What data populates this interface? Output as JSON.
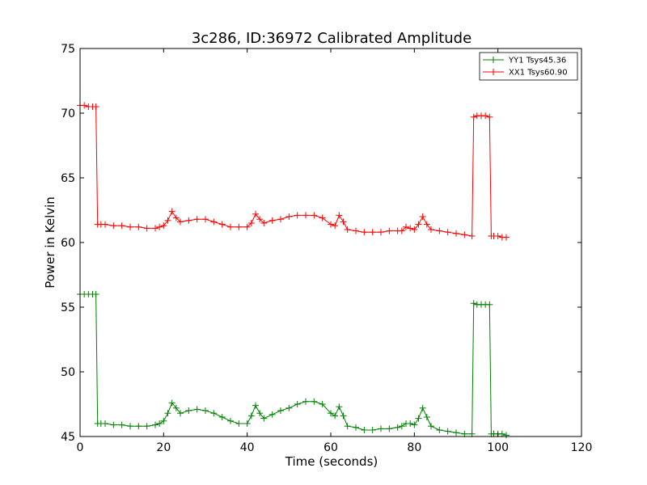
{
  "chart_data": {
    "type": "line",
    "title": "3c286, ID:36972 Calibrated Amplitude",
    "xlabel": "Time (seconds)",
    "ylabel": "Power in Kelvin",
    "xlim": [
      0,
      120
    ],
    "ylim": [
      45,
      75
    ],
    "xticks": [
      0,
      20,
      40,
      60,
      80,
      100,
      120
    ],
    "yticks": [
      45,
      50,
      55,
      60,
      65,
      70,
      75
    ],
    "grid": false,
    "legend_position": "top-right",
    "marker": "+",
    "series": [
      {
        "name": "YY1 Tsys45.36",
        "color": "#008000",
        "x": [
          0,
          1,
          2,
          3,
          3.8,
          4.2,
          5,
          6,
          8,
          10,
          12,
          14,
          16,
          18,
          19,
          20,
          21,
          22,
          23,
          24,
          26,
          28,
          30,
          32,
          34,
          36,
          38,
          40,
          41,
          42,
          43,
          44,
          46,
          48,
          50,
          52,
          54,
          56,
          58,
          60,
          61,
          62,
          63,
          64,
          66,
          68,
          70,
          72,
          74,
          76,
          77,
          78,
          79,
          80,
          81,
          82,
          83,
          84,
          86,
          88,
          90,
          92,
          93.8,
          94.2,
          95,
          96,
          97,
          98,
          98.4,
          99,
          100,
          101,
          102
        ],
        "y": [
          56,
          56,
          56,
          56,
          56,
          46,
          46,
          46,
          45.9,
          45.9,
          45.8,
          45.8,
          45.8,
          45.9,
          46,
          46.2,
          46.8,
          47.6,
          47.2,
          46.8,
          47,
          47.1,
          47,
          46.8,
          46.5,
          46.2,
          46,
          46,
          46.6,
          47.4,
          46.8,
          46.4,
          46.7,
          47,
          47.2,
          47.5,
          47.7,
          47.7,
          47.5,
          46.8,
          46.6,
          47.3,
          46.6,
          45.8,
          45.7,
          45.5,
          45.5,
          45.6,
          45.6,
          45.7,
          45.8,
          46,
          46,
          45.9,
          46.4,
          47.2,
          46.5,
          45.8,
          45.5,
          45.4,
          45.3,
          45.2,
          45.2,
          55.3,
          55.2,
          55.2,
          55.2,
          55.2,
          45.2,
          45.2,
          45.2,
          45.2,
          45.1
        ]
      },
      {
        "name": "XX1 Tsys60.90",
        "color": "#ff0000",
        "x": [
          0,
          1,
          2,
          3,
          3.8,
          4.2,
          5,
          6,
          8,
          10,
          12,
          14,
          16,
          18,
          19,
          20,
          21,
          22,
          23,
          24,
          26,
          28,
          30,
          32,
          34,
          36,
          38,
          40,
          41,
          42,
          43,
          44,
          46,
          48,
          50,
          52,
          54,
          56,
          58,
          60,
          61,
          62,
          63,
          64,
          66,
          68,
          70,
          72,
          74,
          76,
          77,
          78,
          79,
          80,
          81,
          82,
          83,
          84,
          86,
          88,
          90,
          92,
          93.8,
          94.2,
          95,
          96,
          97,
          98,
          98.4,
          99,
          100,
          101,
          102
        ],
        "y": [
          70.6,
          70.6,
          70.5,
          70.5,
          70.5,
          61.4,
          61.4,
          61.4,
          61.3,
          61.3,
          61.2,
          61.2,
          61.1,
          61.1,
          61.2,
          61.3,
          61.7,
          62.4,
          61.9,
          61.6,
          61.7,
          61.8,
          61.8,
          61.6,
          61.4,
          61.2,
          61.2,
          61.2,
          61.5,
          62.2,
          61.8,
          61.5,
          61.7,
          61.8,
          62,
          62.1,
          62.1,
          62.1,
          61.9,
          61.4,
          61.3,
          62.1,
          61.6,
          61,
          60.9,
          60.8,
          60.8,
          60.8,
          60.9,
          60.9,
          60.9,
          61.2,
          61.1,
          61,
          61.4,
          62,
          61.4,
          61,
          60.9,
          60.8,
          60.7,
          60.6,
          60.5,
          69.7,
          69.8,
          69.8,
          69.8,
          69.7,
          60.5,
          60.5,
          60.5,
          60.4,
          60.4
        ]
      }
    ]
  }
}
